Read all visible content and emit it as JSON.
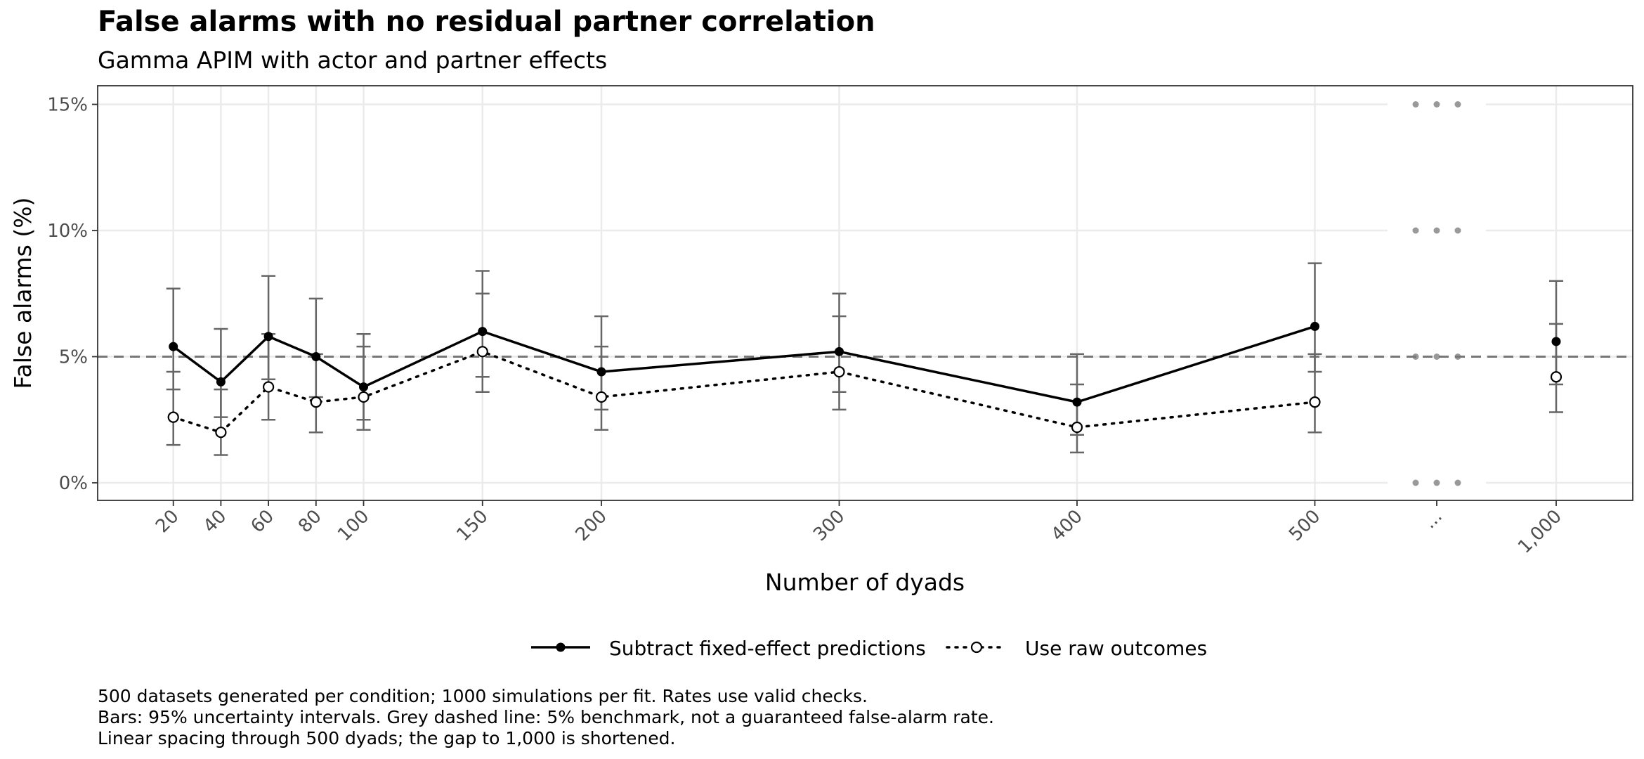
{
  "chart_data": {
    "type": "line",
    "title": "False alarms with no residual partner correlation",
    "subtitle": "Gamma APIM with actor and partner effects",
    "xlabel": "Number of dyads",
    "ylabel": "False alarms (%)",
    "ylim": [
      0,
      15
    ],
    "y_ticks": [
      0,
      5,
      10,
      15
    ],
    "y_tick_labels": [
      "0%",
      "5%",
      "10%",
      "15%"
    ],
    "x_ticks": [
      20,
      40,
      60,
      80,
      100,
      150,
      200,
      300,
      400,
      500,
      "...",
      1000
    ],
    "x_tick_labels": [
      "20",
      "40",
      "60",
      "80",
      "100",
      "150",
      "200",
      "300",
      "400",
      "500",
      "...",
      "1,000"
    ],
    "benchmark": 5,
    "grid": true,
    "legend_position": "bottom",
    "axis_break_after": 500,
    "series": [
      {
        "name": "Subtract fixed-effect predictions",
        "style": "solid",
        "marker": "filled",
        "color": "#000000",
        "x": [
          20,
          40,
          60,
          80,
          100,
          150,
          200,
          300,
          400,
          500,
          1000
        ],
        "y": [
          5.4,
          4.0,
          5.8,
          5.0,
          3.8,
          6.0,
          4.4,
          5.2,
          3.2,
          6.2,
          5.6
        ],
        "lower": [
          3.7,
          2.6,
          4.1,
          3.4,
          2.5,
          4.2,
          2.9,
          3.6,
          1.9,
          4.4,
          3.9
        ],
        "upper": [
          7.7,
          6.1,
          8.2,
          7.3,
          5.9,
          8.4,
          6.6,
          7.5,
          5.1,
          8.7,
          8.0
        ]
      },
      {
        "name": "Use raw outcomes",
        "style": "dotted",
        "marker": "open",
        "color": "#000000",
        "x": [
          20,
          40,
          60,
          80,
          100,
          150,
          200,
          300,
          400,
          500,
          1000
        ],
        "y": [
          2.6,
          2.0,
          3.8,
          3.2,
          3.4,
          5.2,
          3.4,
          4.4,
          2.2,
          3.2,
          4.2
        ],
        "lower": [
          1.5,
          1.1,
          2.5,
          2.0,
          2.1,
          3.6,
          2.1,
          2.9,
          1.2,
          2.0,
          2.8
        ],
        "upper": [
          4.4,
          3.7,
          5.9,
          5.1,
          5.4,
          7.5,
          5.4,
          6.6,
          3.9,
          5.1,
          6.3
        ]
      }
    ],
    "caption": [
      "500 datasets generated per condition; 1000 simulations per fit. Rates use valid checks.",
      "Bars: 95% uncertainty intervals. Grey dashed line: 5% benchmark, not a guaranteed false-alarm rate.",
      "Linear spacing through 500 dyads; the gap to 1,000 is shortened."
    ]
  }
}
